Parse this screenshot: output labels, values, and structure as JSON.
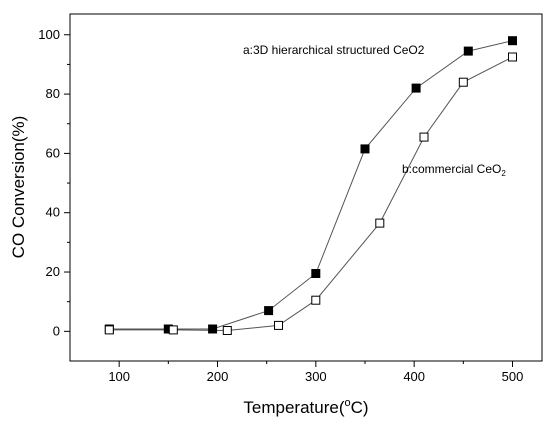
{
  "chart_data": {
    "type": "scatter",
    "xlabel_main": "Temperature(",
    "xlabel_degree": "o",
    "xlabel_unit": "C)",
    "ylabel": "CO Conversion(%)",
    "xlim": [
      50,
      530
    ],
    "ylim": [
      -10,
      107
    ],
    "xticks": [
      100,
      200,
      300,
      400,
      500
    ],
    "yticks": [
      0,
      20,
      40,
      60,
      80,
      100
    ],
    "grid": false,
    "series": [
      {
        "name": "a:3D hierarchical structured CeO2",
        "marker": "filled-square",
        "color": "#000000",
        "x": [
          90,
          150,
          195,
          252,
          300,
          350,
          402,
          455,
          500
        ],
        "y": [
          0.8,
          0.8,
          0.8,
          7,
          19.5,
          61.5,
          82,
          94.5,
          98
        ]
      },
      {
        "name_main": "b:commercial CeO",
        "name_sub": "2",
        "marker": "open-square",
        "color": "#000000",
        "x": [
          90,
          155,
          210,
          262,
          300,
          365,
          410,
          450,
          500
        ],
        "y": [
          0.5,
          0.5,
          0.3,
          2,
          10.5,
          36.5,
          65.5,
          84,
          92.5
        ]
      }
    ]
  }
}
